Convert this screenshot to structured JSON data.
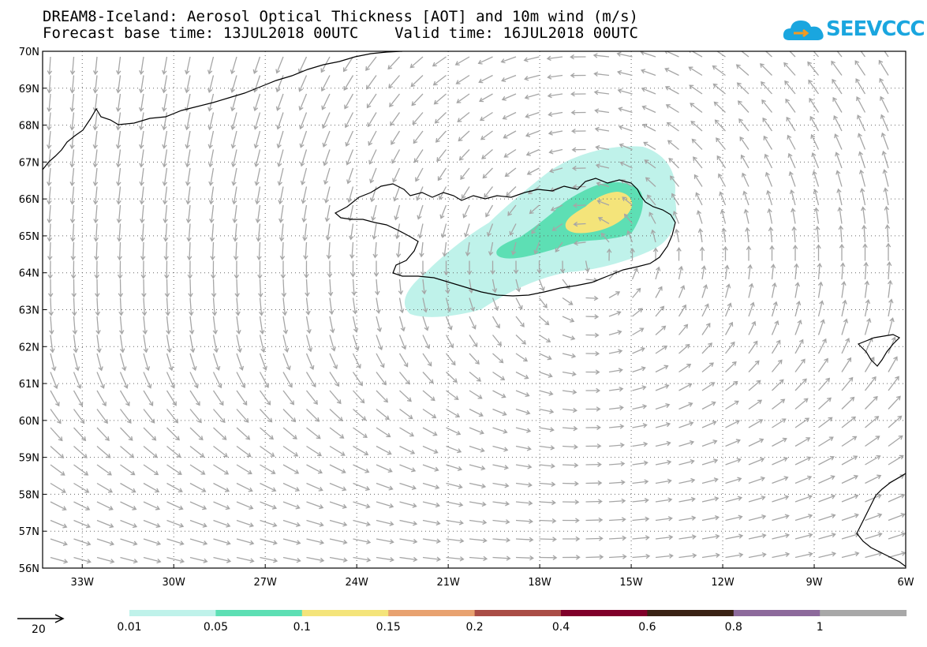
{
  "header": {
    "title_line1": "DREAM8-Iceland: Aerosol Optical Thickness [AOT] and 10m wind (m/s)",
    "title_line2": "Forecast base time: 13JUL2018 00UTC    Valid time: 16JUL2018 00UTC"
  },
  "logo": {
    "text": "SEEVCCC",
    "color": "#1aa6df"
  },
  "map": {
    "lat_labels": [
      "70N",
      "69N",
      "68N",
      "67N",
      "66N",
      "65N",
      "64N",
      "63N",
      "62N",
      "61N",
      "60N",
      "59N",
      "58N",
      "57N",
      "56N"
    ],
    "lon_labels": [
      "33W",
      "30W",
      "27W",
      "24W",
      "21W",
      "18W",
      "15W",
      "12W",
      "9W",
      "6W"
    ],
    "lat_range": [
      56,
      70
    ],
    "lon_range": [
      -34.3,
      -6
    ],
    "wind_color": "#a6a6a6",
    "grid_style": "dotted"
  },
  "legend": {
    "vector_reference": "20",
    "levels": [
      "0.01",
      "0.05",
      "0.1",
      "0.15",
      "0.2",
      "0.4",
      "0.6",
      "0.8",
      "1"
    ],
    "colors": [
      "#bff2ea",
      "#5ddfb4",
      "#f4e47a",
      "#e8a270",
      "#aa4d46",
      "#80002a",
      "#3a2214",
      "#8d6a9c",
      "#a8a8a8"
    ]
  },
  "aot_colors": {
    "c001": "#bff2ea",
    "c005": "#5ddfb4",
    "c01": "#f4e47a"
  }
}
